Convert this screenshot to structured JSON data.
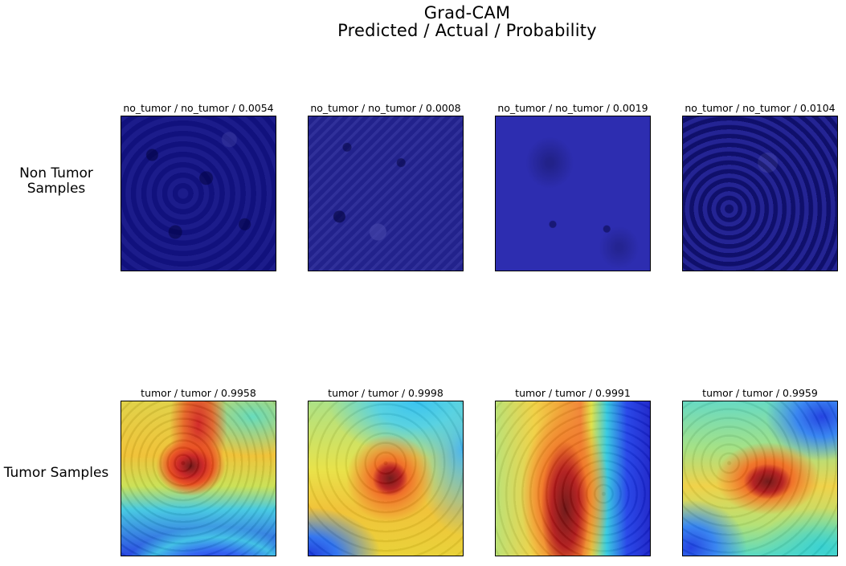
{
  "title": {
    "line1": "Grad-CAM",
    "line2": "Predicted / Actual / Probability"
  },
  "rows": [
    {
      "label_lines": [
        "Non Tumor",
        "Samples"
      ],
      "panels": [
        {
          "caption": "no_tumor / no_tumor / 0.0054",
          "predicted": "no_tumor",
          "actual": "no_tumor",
          "probability": 0.0054
        },
        {
          "caption": "no_tumor / no_tumor / 0.0008",
          "predicted": "no_tumor",
          "actual": "no_tumor",
          "probability": 0.0008
        },
        {
          "caption": "no_tumor / no_tumor / 0.0019",
          "predicted": "no_tumor",
          "actual": "no_tumor",
          "probability": 0.0019
        },
        {
          "caption": "no_tumor / no_tumor / 0.0104",
          "predicted": "no_tumor",
          "actual": "no_tumor",
          "probability": 0.0104
        }
      ]
    },
    {
      "label_lines": [
        "Tumor Samples"
      ],
      "panels": [
        {
          "caption": "tumor / tumor / 0.9958",
          "predicted": "tumor",
          "actual": "tumor",
          "probability": 0.9958
        },
        {
          "caption": "tumor / tumor / 0.9998",
          "predicted": "tumor",
          "actual": "tumor",
          "probability": 0.9998
        },
        {
          "caption": "tumor / tumor / 0.9991",
          "predicted": "tumor",
          "actual": "tumor",
          "probability": 0.9991
        },
        {
          "caption": "tumor / tumor / 0.9959",
          "predicted": "tumor",
          "actual": "tumor",
          "probability": 0.9959
        }
      ]
    }
  ],
  "colors": {
    "low_activation": "#1a1a8c",
    "high_activation": "#c81e1e",
    "border": "#000000"
  }
}
